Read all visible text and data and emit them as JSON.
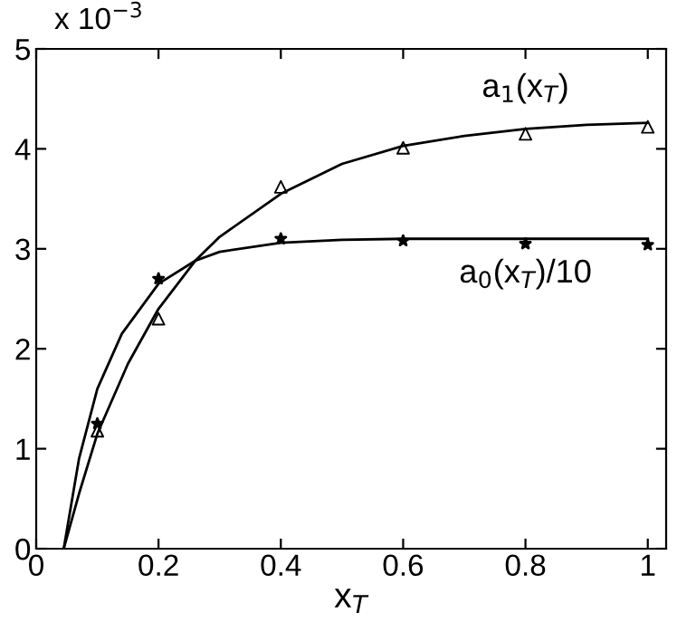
{
  "chart_data": {
    "type": "line",
    "xlabel": "x$_{T}$",
    "xlim": [
      0,
      1.03
    ],
    "xticks": [
      0,
      0.2,
      0.4,
      0.6,
      0.8,
      1
    ],
    "ylim": [
      0,
      5
    ],
    "yticks": [
      0,
      1,
      2,
      3,
      4,
      5
    ],
    "grid": false,
    "legend": false,
    "series": [
      {
        "color": "#000000",
        "marker": "none",
        "x": [
          0.045,
          0.07,
          0.1,
          0.15,
          0.2,
          0.26,
          0.3,
          0.4,
          0.5,
          0.6,
          0.7,
          0.8,
          0.9,
          1.0
        ],
        "values": [
          0,
          0.55,
          1.15,
          1.85,
          2.4,
          2.88,
          3.12,
          3.55,
          3.85,
          4.03,
          4.13,
          4.2,
          4.24,
          4.26
        ]
      },
      {
        "color": "#000000",
        "marker": "none",
        "x": [
          0.045,
          0.07,
          0.1,
          0.14,
          0.2,
          0.26,
          0.3,
          0.4,
          0.5,
          0.6,
          0.8,
          1.0
        ],
        "values": [
          0,
          0.9,
          1.6,
          2.15,
          2.65,
          2.88,
          2.97,
          3.06,
          3.09,
          3.1,
          3.1,
          3.1
        ]
      },
      {
        "type": "scatter",
        "color": "#000000",
        "marker": "triangle",
        "x": [
          0.1,
          0.2,
          0.4,
          0.6,
          0.8,
          1.0
        ],
        "values": [
          1.18,
          2.3,
          3.62,
          4.01,
          4.15,
          4.22
        ]
      },
      {
        "type": "scatter",
        "color": "#000000",
        "marker": "star",
        "x": [
          0.1,
          0.2,
          0.4,
          0.6,
          0.8,
          1.0
        ],
        "values": [
          1.25,
          2.7,
          3.1,
          3.08,
          3.05,
          3.04
        ]
      }
    ],
    "annotations": [
      "x 10$^{−3}$",
      {
        "text": "a$_{1}$(x$_{T}$)",
        "x": 0.8,
        "y": 4.2
      },
      {
        "text": "a$_{0}$(x$_{T}$)/10",
        "x": 0.8,
        "y": 3.1
      }
    ]
  }
}
